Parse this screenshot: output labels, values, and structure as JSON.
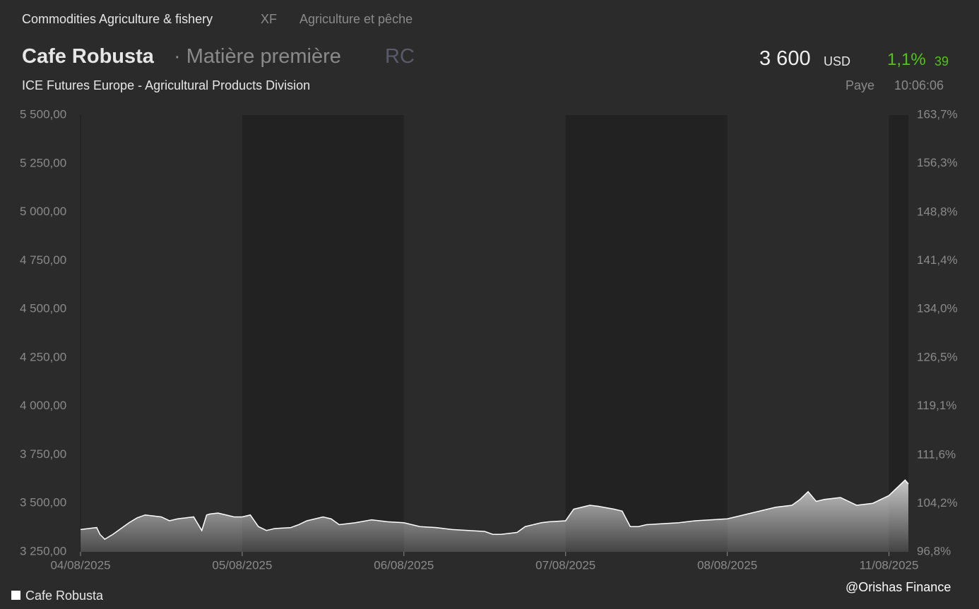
{
  "header": {
    "category": "Commodities Agriculture & fishery",
    "code": "XF",
    "sector": "Agriculture et pêche",
    "name": "Cafe Robusta",
    "kind": "· Matière première",
    "symbol": "RC",
    "price": "3 600",
    "currency": "USD",
    "change_pct": "1,1%",
    "change": "39",
    "exchange": "ICE Futures Europe - Agricultural Products Division",
    "country": "Paye",
    "time": "10:06:06"
  },
  "chart_data": {
    "type": "area",
    "x": [
      0,
      0.05,
      0.1,
      0.12,
      0.15,
      0.2,
      0.25,
      0.3,
      0.35,
      0.4,
      0.45,
      0.5,
      0.55,
      0.6,
      0.65,
      0.7,
      0.75,
      0.78,
      0.8,
      0.85,
      0.9,
      0.95,
      1.0,
      1.05,
      1.1,
      1.15,
      1.2,
      1.3,
      1.35,
      1.4,
      1.5,
      1.55,
      1.6,
      1.7,
      1.8,
      1.9,
      2.0,
      2.05,
      2.1,
      2.2,
      2.3,
      2.4,
      2.5,
      2.55,
      2.6,
      2.7,
      2.75,
      2.8,
      2.85,
      2.9,
      3.0,
      3.05,
      3.1,
      3.15,
      3.2,
      3.3,
      3.35,
      3.4,
      3.45,
      3.5,
      3.6,
      3.7,
      3.8,
      3.9,
      4.0,
      4.1,
      4.2,
      4.3,
      4.4,
      4.45,
      4.5,
      4.55,
      4.6,
      4.7,
      4.8,
      4.9,
      5.0,
      5.05,
      5.1,
      5.12
    ],
    "series": [
      {
        "name": "Cafe Robusta",
        "color": "#ffffff",
        "values": [
          3365,
          3370,
          3375,
          3340,
          3315,
          3340,
          3370,
          3400,
          3425,
          3440,
          3435,
          3430,
          3410,
          3420,
          3425,
          3430,
          3360,
          3440,
          3445,
          3450,
          3440,
          3430,
          3430,
          3440,
          3380,
          3360,
          3370,
          3375,
          3390,
          3410,
          3430,
          3420,
          3390,
          3400,
          3415,
          3405,
          3400,
          3390,
          3380,
          3375,
          3365,
          3360,
          3355,
          3340,
          3340,
          3350,
          3380,
          3390,
          3400,
          3405,
          3410,
          3470,
          3480,
          3490,
          3485,
          3470,
          3460,
          3380,
          3380,
          3390,
          3395,
          3400,
          3410,
          3415,
          3420,
          3440,
          3460,
          3480,
          3490,
          3520,
          3560,
          3510,
          3520,
          3530,
          3490,
          3500,
          3540,
          3580,
          3620,
          3600
        ]
      }
    ],
    "xlim": [
      0,
      5.12
    ],
    "xticks": [
      {
        "value": 0,
        "label": "04/08/2025"
      },
      {
        "value": 1,
        "label": "05/08/2025"
      },
      {
        "value": 2,
        "label": "06/08/2025"
      },
      {
        "value": 3,
        "label": "07/08/2025"
      },
      {
        "value": 4,
        "label": "08/08/2025"
      },
      {
        "value": 5,
        "label": "11/08/2025"
      }
    ],
    "ylim": [
      3250,
      5500
    ],
    "yticks": [
      {
        "value": 3250,
        "label": "3 250,00"
      },
      {
        "value": 3500,
        "label": "3 500,00"
      },
      {
        "value": 3750,
        "label": "3 750,00"
      },
      {
        "value": 4000,
        "label": "4 000,00"
      },
      {
        "value": 4250,
        "label": "4 250,00"
      },
      {
        "value": 4500,
        "label": "4 500,00"
      },
      {
        "value": 4750,
        "label": "4 750,00"
      },
      {
        "value": 5000,
        "label": "5 000,00"
      },
      {
        "value": 5250,
        "label": "5 250,00"
      },
      {
        "value": 5500,
        "label": "5 500,00"
      }
    ],
    "y2lim": [
      96.8,
      163.7
    ],
    "y2ticks": [
      {
        "value": 96.8,
        "label": "96,8%"
      },
      {
        "value": 104.2,
        "label": "104,2%"
      },
      {
        "value": 111.6,
        "label": "111,6%"
      },
      {
        "value": 119.1,
        "label": "119,1%"
      },
      {
        "value": 126.5,
        "label": "126,5%"
      },
      {
        "value": 134.0,
        "label": "134,0%"
      },
      {
        "value": 141.4,
        "label": "141,4%"
      },
      {
        "value": 148.8,
        "label": "148,8%"
      },
      {
        "value": 156.3,
        "label": "156,3%"
      },
      {
        "value": 163.7,
        "label": "163,7%"
      }
    ],
    "grid": false
  },
  "watermark": "@Orishas Finance"
}
